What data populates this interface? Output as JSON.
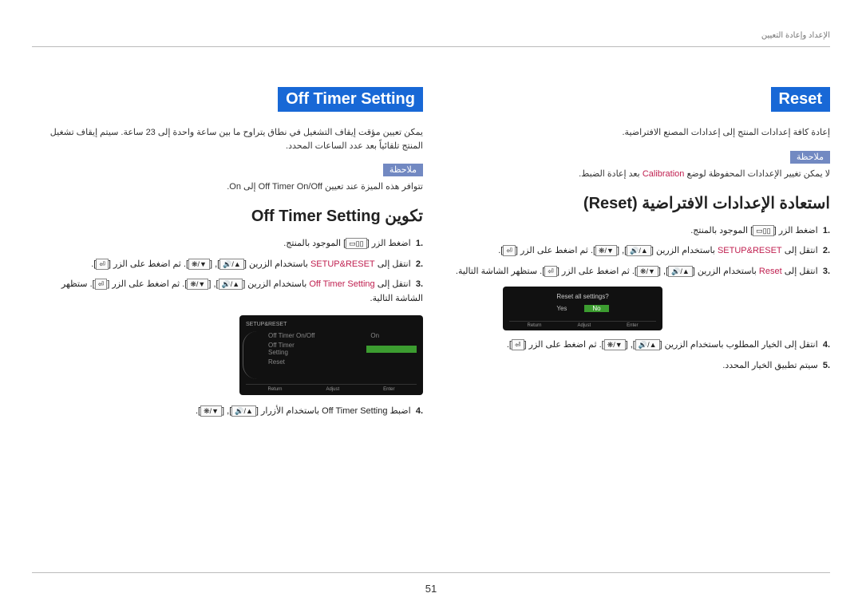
{
  "header": {
    "breadcrumb": "الإعداد وإعادة التعيين"
  },
  "left": {
    "title": "Off Timer Setting",
    "desc": "يمكن تعيين مؤقت إيقاف التشغيل في نطاق يتراوح ما بين ساعة واحدة إلى 23 ساعة. سيتم إيقاف تشغيل المنتج تلقائياً بعد عدد الساعات المحدد.",
    "noteLabel": "ملاحظة",
    "noteText1": "تتوافر هذه الميزة عند تعيين ",
    "noteFeature": "Off Timer On/Off",
    "noteText2": " إلى ",
    "noteOn": "On",
    "noteText3": ".",
    "subheading": "تكوين Off Timer Setting",
    "steps": {
      "s1a": "اضغط الزر [",
      "s1b": "] الموجود بالمنتج.",
      "s2a": "انتقل إلى ",
      "setup": "SETUP&RESET",
      "s2b": " باستخدام الزرين [",
      "s2c": "]. ثم اضغط على الزر [",
      "s2d": "].",
      "s3a": "انتقل إلى ",
      "offTimer": "Off Timer Setting",
      "s3b": " باستخدام الزرين [",
      "s3c": "]. ثم اضغط على الزر [",
      "s3d": "]. ستظهر الشاشة التالية.",
      "s4a": "اضبط ",
      "s4b": " باستخدام الأزرار ["
    },
    "screenshot": {
      "title": "SETUP&RESET",
      "i1": "Off Timer On/Off",
      "v1": "On",
      "i2": "Off Timer Setting",
      "i3": "Reset",
      "b1": "Return",
      "b2": "Adjust",
      "b3": "Enter"
    }
  },
  "right": {
    "title": "Reset",
    "desc": "إعادة كافة إعدادات المنتج إلى إعدادات المصنع الافتراضية.",
    "noteLabel": "ملاحظة",
    "noteText1": "لا يمكن تغيير الإعدادات المحفوظة لوضع ",
    "calibration": "Calibration",
    "noteText2": " بعد إعادة الضبط.",
    "subheading": "استعادة الإعدادات الافتراضية (Reset)",
    "steps": {
      "s1a": "اضغط الزر [",
      "s1b": "] الموجود بالمنتج.",
      "s2a": "انتقل إلى ",
      "setup": "SETUP&RESET",
      "s2b": " باستخدام الزرين [",
      "s2c": "]. ثم اضغط على الزر [",
      "s2d": "].",
      "s3a": "انتقل إلى ",
      "reset": "Reset",
      "s3b": " باستخدام الزرين [",
      "s3c": "]. ثم اضغط على الزر [",
      "s3d": "]. ستظهر الشاشة التالية.",
      "s4a": "انتقل إلى الخيار المطلوب باستخدام الزرين [",
      "s4b": "]. ثم اضغط على الزر [",
      "s4c": "].",
      "s5": "سيتم تطبيق الخيار المحدد."
    },
    "dialog": {
      "q": "Reset all settings?",
      "yes": "Yes",
      "no": "No",
      "b1": "Return",
      "b2": "Adjust",
      "b3": "Enter"
    }
  },
  "icons": {
    "menu": "▭▯▯",
    "updown": "❋/▼",
    "voldown": "🔊/▼",
    "volup": "🔊/▲",
    "enter": "⏎"
  },
  "pageNum": "51"
}
